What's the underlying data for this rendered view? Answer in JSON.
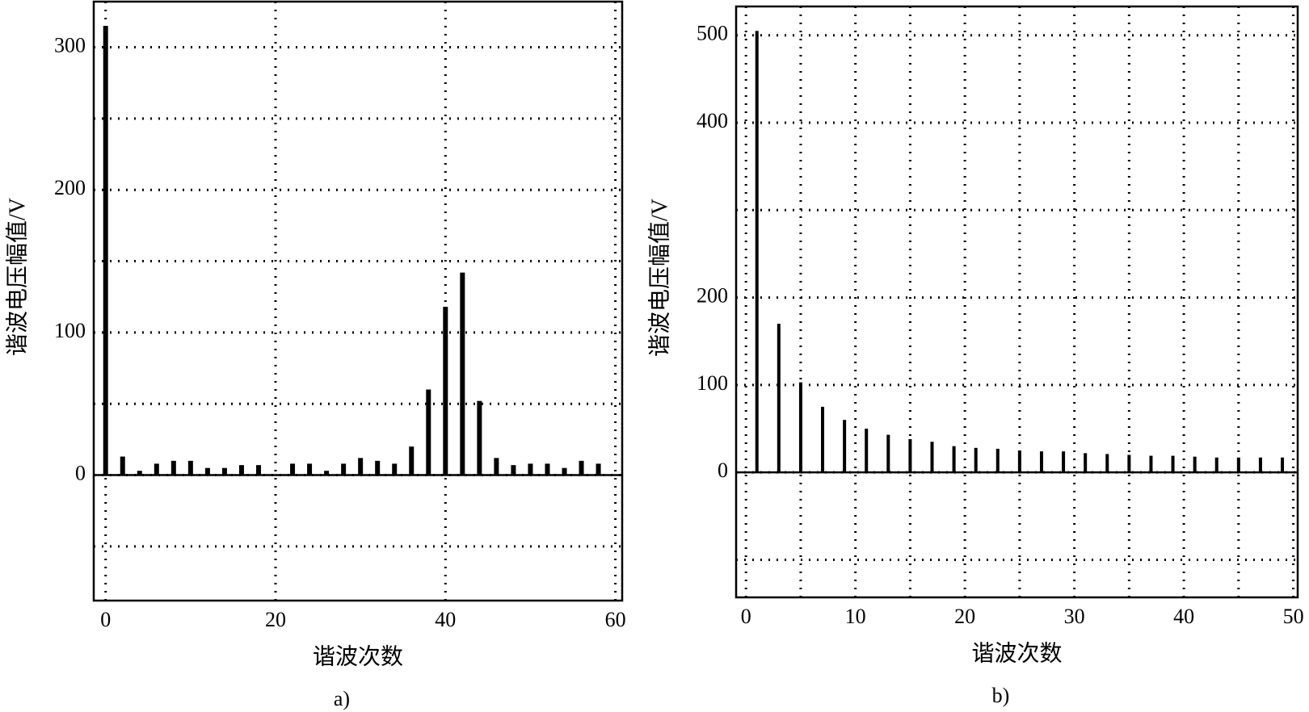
{
  "chart_data": [
    {
      "type": "bar",
      "panel_label": "a)",
      "xlabel": "谐波次数",
      "ylabel": "谐波电压幅值/V",
      "color": "#000000",
      "x": [
        0,
        2,
        4,
        6,
        8,
        10,
        12,
        14,
        16,
        18,
        22,
        24,
        26,
        28,
        30,
        32,
        34,
        36,
        38,
        40,
        42,
        44,
        46,
        48,
        50,
        52,
        54,
        56,
        58
      ],
      "values": [
        315,
        13,
        3,
        8,
        10,
        10,
        5,
        5,
        7,
        7,
        8,
        8,
        3,
        8,
        12,
        10,
        8,
        20,
        60,
        118,
        142,
        52,
        12,
        7,
        8,
        8,
        5,
        10,
        8
      ],
      "xlim": [
        -1.4,
        60.8
      ],
      "xticks": [
        0,
        20,
        40,
        60
      ],
      "minor_xticks": [],
      "ylim": [
        -88,
        332
      ],
      "yticks": [
        0,
        100,
        200,
        300
      ],
      "minor_yticks": [
        -50,
        50,
        150,
        250
      ],
      "grid": true
    },
    {
      "type": "bar",
      "panel_label": "b)",
      "xlabel": "谐波次数",
      "ylabel": "谐波电压幅值/V",
      "color": "#000000",
      "x": [
        1,
        3,
        5,
        7,
        9,
        11,
        13,
        15,
        17,
        19,
        21,
        23,
        25,
        27,
        29,
        31,
        33,
        35,
        37,
        39,
        41,
        43,
        45,
        47,
        49
      ],
      "values": [
        505,
        170,
        103,
        75,
        60,
        50,
        43,
        38,
        35,
        30,
        28,
        27,
        25,
        24,
        24,
        22,
        21,
        20,
        19,
        19,
        18,
        17,
        17,
        17,
        17
      ],
      "xlim": [
        -0.9,
        50.4
      ],
      "xticks": [
        0,
        10,
        20,
        30,
        40,
        50
      ],
      "minor_xticks": [
        5,
        15,
        25,
        35,
        45
      ],
      "ylim": [
        -143,
        533
      ],
      "yticks": [
        0,
        100,
        200,
        400,
        500
      ],
      "minor_yticks": [
        -100,
        300
      ],
      "grid": true
    }
  ]
}
